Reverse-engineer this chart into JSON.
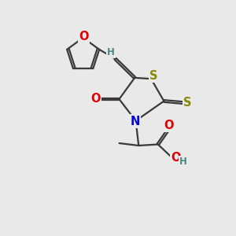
{
  "bg_color": "#e9e9e9",
  "bond_color": "#3a3a3a",
  "atom_colors": {
    "O": "#e00000",
    "N": "#0000e0",
    "S": "#888800",
    "H": "#4a8888",
    "C": "#3a3a3a"
  },
  "bond_width": 1.6,
  "font_size_atom": 10.5,
  "font_size_H": 8.5,
  "fig_bg": "#e9e9e9"
}
